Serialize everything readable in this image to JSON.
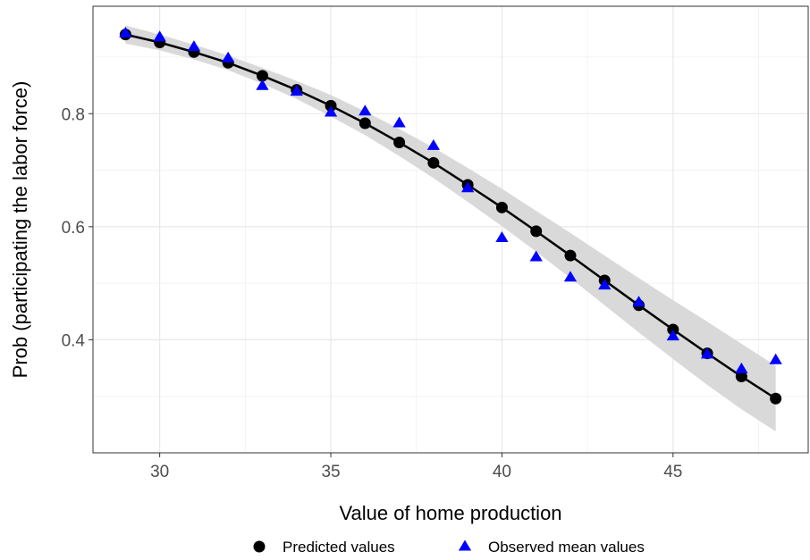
{
  "chart_data": {
    "type": "line",
    "xlabel": "Value of home production",
    "ylabel": "Prob (participating the labor force)",
    "xlim": [
      28.05,
      48.95
    ],
    "ylim": [
      0.2,
      0.99
    ],
    "x_ticks": [
      30,
      35,
      40,
      45
    ],
    "x_tick_labels": [
      "30",
      "35",
      "40",
      "45"
    ],
    "y_ticks": [
      0.4,
      0.6,
      0.8
    ],
    "y_tick_labels": [
      "0.4",
      "0.6",
      "0.8"
    ],
    "grid": true,
    "legend_position": "bottom",
    "x": [
      29,
      30,
      31,
      32,
      33,
      34,
      35,
      36,
      37,
      38,
      39,
      40,
      41,
      42,
      43,
      44,
      45,
      46,
      47,
      48
    ],
    "series": [
      {
        "name": "Predicted values",
        "marker": "circle",
        "color": "#000000",
        "values": [
          0.94,
          0.926,
          0.909,
          0.89,
          0.867,
          0.842,
          0.814,
          0.783,
          0.749,
          0.713,
          0.674,
          0.634,
          0.592,
          0.549,
          0.505,
          0.461,
          0.418,
          0.376,
          0.335,
          0.296
        ]
      },
      {
        "name": "Observed mean values",
        "marker": "triangle",
        "color": "#0000ff",
        "values": [
          0.942,
          0.935,
          0.918,
          0.898,
          0.849,
          0.839,
          0.802,
          0.804,
          0.783,
          0.743,
          0.668,
          0.58,
          0.546,
          0.51,
          0.496,
          0.466,
          0.406,
          0.374,
          0.348,
          0.364
        ]
      }
    ],
    "confidence_band": {
      "lower": [
        0.924,
        0.912,
        0.896,
        0.877,
        0.853,
        0.826,
        0.795,
        0.762,
        0.725,
        0.686,
        0.644,
        0.601,
        0.556,
        0.509,
        0.461,
        0.413,
        0.366,
        0.32,
        0.277,
        0.238
      ],
      "upper": [
        0.956,
        0.94,
        0.922,
        0.903,
        0.881,
        0.858,
        0.833,
        0.804,
        0.773,
        0.74,
        0.704,
        0.667,
        0.628,
        0.589,
        0.549,
        0.509,
        0.47,
        0.432,
        0.393,
        0.354
      ],
      "color": "#d9d9d9"
    },
    "line_color": "#000000"
  }
}
